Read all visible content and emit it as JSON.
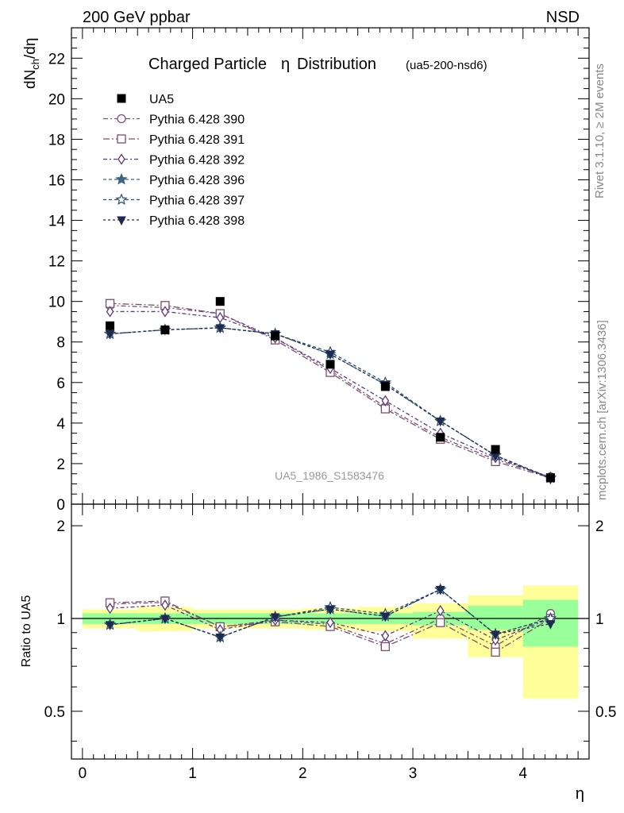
{
  "header": {
    "process": "200 GeV ppbar",
    "selection": "NSD",
    "side_top": "Rivet 3.1.10, ≥ 2M events",
    "side_bottom": "mcplots.cern.ch [arXiv:1306.3436]",
    "watermark": "UA5_1986_S1583476"
  },
  "chart_data": {
    "type": "line",
    "title": "Charged Particle",
    "title_symbol": "η",
    "title_suffix": "Distribution",
    "title_tag": "(ua5-200-nsd6)",
    "ylabel_main": "dN",
    "ylabel_sub": "ch",
    "ylabel_tail": "/dη",
    "ylabel_ratio": "Ratio to UA5",
    "xlabel": "η",
    "xlim": [
      -0.1,
      4.6
    ],
    "ylim_main": [
      0,
      23.5
    ],
    "ylim_ratio": [
      0.35,
      2.35
    ],
    "main_yticks": [
      0,
      2,
      4,
      6,
      8,
      10,
      12,
      14,
      16,
      18,
      20,
      22
    ],
    "ratio_yticks": [
      0.5,
      1,
      2
    ],
    "xticks": [
      0,
      1,
      2,
      3,
      4
    ],
    "x": [
      0.25,
      0.75,
      1.25,
      1.75,
      2.25,
      2.75,
      3.25,
      3.75,
      4.25
    ],
    "data": {
      "name": "UA5",
      "color": "#000000",
      "y": [
        8.8,
        8.6,
        10.0,
        8.3,
        6.9,
        5.8,
        3.3,
        2.7,
        1.3
      ]
    },
    "band_inner": [
      {
        "x0": 0.0,
        "x1": 0.5,
        "lo": 0.96,
        "hi": 1.04
      },
      {
        "x0": 0.5,
        "x1": 1.0,
        "lo": 0.96,
        "hi": 1.04
      },
      {
        "x0": 1.0,
        "x1": 1.5,
        "lo": 0.96,
        "hi": 1.04
      },
      {
        "x0": 1.5,
        "x1": 2.0,
        "lo": 0.96,
        "hi": 1.04
      },
      {
        "x0": 2.0,
        "x1": 2.5,
        "lo": 0.96,
        "hi": 1.04
      },
      {
        "x0": 2.5,
        "x1": 3.0,
        "lo": 0.96,
        "hi": 1.04
      },
      {
        "x0": 3.0,
        "x1": 3.5,
        "lo": 0.95,
        "hi": 1.05
      },
      {
        "x0": 3.5,
        "x1": 4.0,
        "lo": 0.92,
        "hi": 1.1
      },
      {
        "x0": 4.0,
        "x1": 4.5,
        "lo": 0.81,
        "hi": 1.15
      }
    ],
    "band_outer": [
      {
        "x0": 0.0,
        "x1": 0.5,
        "lo": 0.93,
        "hi": 1.07
      },
      {
        "x0": 0.5,
        "x1": 1.0,
        "lo": 0.91,
        "hi": 1.09
      },
      {
        "x0": 1.0,
        "x1": 1.5,
        "lo": 0.93,
        "hi": 1.07
      },
      {
        "x0": 1.5,
        "x1": 2.0,
        "lo": 0.93,
        "hi": 1.07
      },
      {
        "x0": 2.0,
        "x1": 2.5,
        "lo": 0.92,
        "hi": 1.08
      },
      {
        "x0": 2.5,
        "x1": 3.0,
        "lo": 0.91,
        "hi": 1.09
      },
      {
        "x0": 3.0,
        "x1": 3.5,
        "lo": 0.86,
        "hi": 1.12
      },
      {
        "x0": 3.5,
        "x1": 4.0,
        "lo": 0.75,
        "hi": 1.19
      },
      {
        "x0": 4.0,
        "x1": 4.5,
        "lo": 0.55,
        "hi": 1.28
      }
    ],
    "series": [
      {
        "name": "Pythia 6.428 390",
        "color": "#7b4f7f",
        "marker": "circle",
        "dash": "6,3,2,3",
        "y": [
          9.8,
          9.7,
          9.4,
          8.2,
          6.6,
          4.8,
          3.3,
          2.2,
          1.35
        ]
      },
      {
        "name": "Pythia 6.428 391",
        "color": "#7b4f6a",
        "marker": "square",
        "dash": "8,3,2,3",
        "y": [
          9.9,
          9.8,
          9.4,
          8.1,
          6.5,
          4.7,
          3.2,
          2.1,
          1.3
        ]
      },
      {
        "name": "Pythia 6.428 392",
        "color": "#5a3a82",
        "marker": "diamond",
        "dash": "5,3,2,3",
        "y": [
          9.5,
          9.5,
          9.2,
          8.2,
          6.7,
          5.1,
          3.5,
          2.3,
          1.3
        ]
      },
      {
        "name": "Pythia 6.428 396",
        "color": "#3c6580",
        "marker": "star",
        "dash": "4,3",
        "y": [
          8.4,
          8.6,
          8.7,
          8.4,
          7.4,
          5.9,
          4.1,
          2.4,
          1.3
        ]
      },
      {
        "name": "Pythia 6.428 397",
        "color": "#2f4f6d",
        "marker": "star-open",
        "dash": "4,3",
        "y": [
          8.4,
          8.6,
          8.7,
          8.4,
          7.5,
          6.0,
          4.1,
          2.4,
          1.3
        ]
      },
      {
        "name": "Pythia 6.428 398",
        "color": "#1f2a4f",
        "marker": "triangle-down",
        "dash": "3,3",
        "y": [
          8.4,
          8.6,
          8.7,
          8.4,
          7.4,
          5.9,
          4.1,
          2.4,
          1.25
        ]
      }
    ]
  }
}
